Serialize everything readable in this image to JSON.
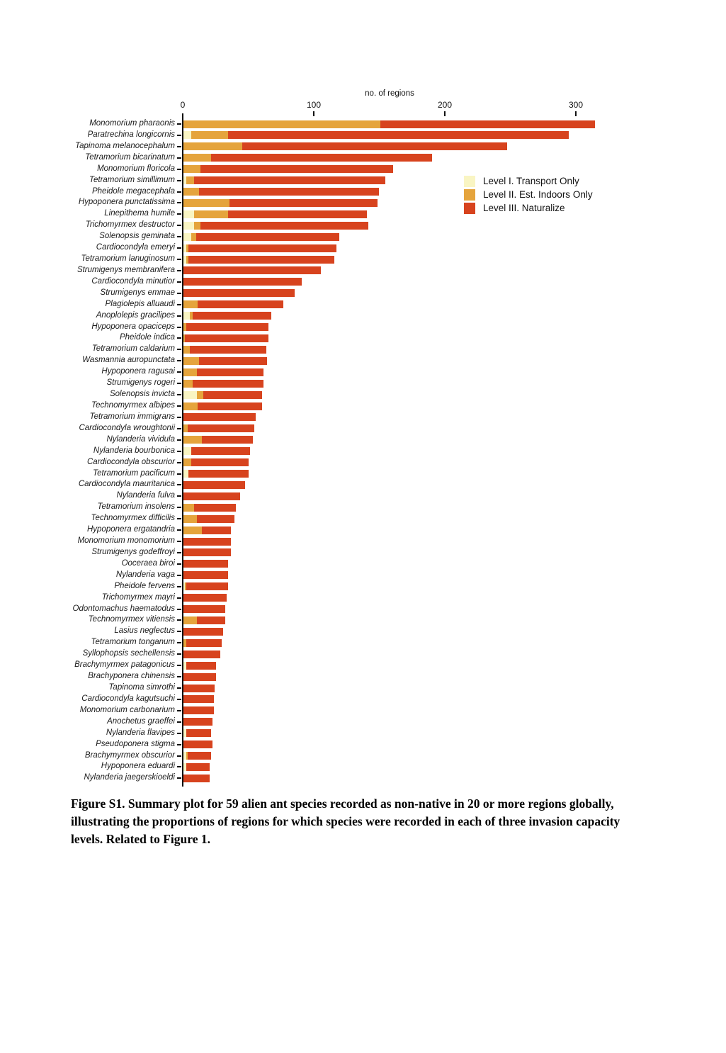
{
  "figure": {
    "axis_title": "no. of regions",
    "caption": "Figure S1. Summary plot for 59 alien ant species recorded as non-native in 20 or more regions globally, illustrating the proportions of regions for which species were recorded in each of three invasion capacity levels. Related to Figure 1."
  },
  "colors": {
    "level1": "#F9F5C3",
    "level2": "#E5A43C",
    "level3": "#D7431E",
    "axis": "#111111"
  },
  "chart_data": {
    "type": "bar",
    "orientation": "horizontal",
    "stacked": true,
    "xlabel": "no. of regions",
    "xlim": [
      0,
      320
    ],
    "x_ticks": [
      0,
      100,
      200,
      300
    ],
    "grid": false,
    "legend_position": "right-inside",
    "categories": [
      "Monomorium pharaonis",
      "Paratrechina longicornis",
      "Tapinoma melanocephalum",
      "Tetramorium bicarinatum",
      "Monomorium floricola",
      "Tetramorium simillimum",
      "Pheidole megacephala",
      "Hypoponera punctatissima",
      "Linepithema humile",
      "Trichomyrmex destructor",
      "Solenopsis geminata",
      "Cardiocondyla emeryi",
      "Tetramorium lanuginosum",
      "Strumigenys membranifera",
      "Cardiocondyla minutior",
      "Strumigenys emmae",
      "Plagiolepis alluaudi",
      "Anoplolepis gracilipes",
      "Hypoponera opaciceps",
      "Pheidole indica",
      "Tetramorium caldarium",
      "Wasmannia auropunctata",
      "Hypoponera ragusai",
      "Strumigenys rogeri",
      "Solenopsis invicta",
      "Technomyrmex albipes",
      "Tetramorium immigrans",
      "Cardiocondyla wroughtonii",
      "Nylanderia vividula",
      "Nylanderia bourbonica",
      "Cardiocondyla obscurior",
      "Tetramorium pacificum",
      "Cardiocondyla mauritanica",
      "Nylanderia fulva",
      "Tetramorium insolens",
      "Technomyrmex difficilis",
      "Hypoponera ergatandria",
      "Monomorium monomorium",
      "Strumigenys godeffroyi",
      "Ooceraea biroi",
      "Nylanderia vaga",
      "Pheidole fervens",
      "Trichomyrmex mayri",
      "Odontomachus haematodus",
      "Technomyrmex vitiensis",
      "Lasius neglectus",
      "Tetramorium tonganum",
      "Syllophopsis sechellensis",
      "Brachymyrmex patagonicus",
      "Brachyponera chinensis",
      "Tapinoma simrothi",
      "Cardiocondyla kagutsuchi",
      "Monomorium carbonarium",
      "Anochetus graeffei",
      "Nylanderia flavipes",
      "Pseudoponera stigma",
      "Brachymyrmex obscurior",
      "Hypoponera eduardi",
      "Nylanderia jaegerskioeldi"
    ],
    "series": [
      {
        "name": "Level I. Transport Only",
        "color": "#F9F5C3",
        "values": [
          0,
          6,
          0,
          0,
          0,
          2,
          0,
          0,
          8,
          8,
          6,
          2,
          2,
          0,
          0,
          0,
          0,
          5,
          0,
          0,
          0,
          0,
          0,
          0,
          10,
          0,
          0,
          0,
          0,
          6,
          0,
          4,
          0,
          0,
          0,
          0,
          0,
          0,
          0,
          0,
          0,
          1,
          0,
          0,
          0,
          0,
          0,
          0,
          2,
          0,
          0,
          0,
          0,
          0,
          2,
          0,
          2,
          2,
          0
        ]
      },
      {
        "name": "Level II. Est. Indoors Only",
        "color": "#E5A43C",
        "values": [
          150,
          28,
          45,
          21,
          13,
          6,
          12,
          35,
          26,
          5,
          4,
          2,
          2,
          0,
          0,
          0,
          11,
          2,
          2,
          1,
          5,
          12,
          10,
          7,
          5,
          11,
          0,
          3,
          14,
          0,
          6,
          0,
          0,
          0,
          8,
          10,
          14,
          0,
          0,
          0,
          0,
          1,
          0,
          0,
          10,
          0,
          2,
          0,
          0,
          0,
          0,
          0,
          0,
          0,
          0,
          0,
          1,
          0,
          0
        ]
      },
      {
        "name": "Level III. Naturalize",
        "color": "#D7431E",
        "values": [
          164,
          260,
          202,
          169,
          147,
          146,
          137,
          113,
          106,
          128,
          109,
          113,
          111,
          105,
          90,
          85,
          65,
          60,
          63,
          64,
          58,
          52,
          51,
          54,
          45,
          49,
          55,
          51,
          39,
          45,
          44,
          46,
          47,
          43,
          32,
          29,
          22,
          36,
          36,
          34,
          34,
          32,
          33,
          32,
          22,
          30,
          27,
          28,
          23,
          25,
          24,
          23,
          23,
          22,
          19,
          22,
          18,
          18,
          20
        ]
      }
    ]
  }
}
